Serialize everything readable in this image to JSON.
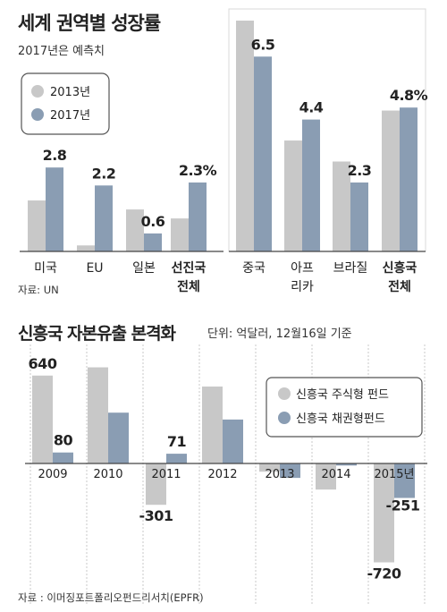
{
  "chart_data": [
    {
      "type": "bar",
      "title": "세계 권역별 성장률",
      "subtitle": "2017년은 예측치",
      "source": "자료: UN",
      "categories": [
        "미국",
        "EU",
        "일본",
        "선진국 전체",
        "중국",
        "아프리카",
        "브라질",
        "신흥국 전체"
      ],
      "category_lines": [
        [
          "미국"
        ],
        [
          "EU"
        ],
        [
          "일본"
        ],
        [
          "선진국",
          "전체"
        ],
        [
          "중국"
        ],
        [
          "아프",
          "리카"
        ],
        [
          "브라질"
        ],
        [
          "신흥국",
          "전체"
        ]
      ],
      "bold_categories": [
        3,
        7
      ],
      "series": [
        {
          "name": "2013년",
          "values": [
            1.7,
            0.2,
            1.4,
            1.1,
            7.7,
            3.7,
            3.0,
            4.7
          ]
        },
        {
          "name": "2017년",
          "values": [
            2.8,
            2.2,
            0.6,
            2.3,
            6.5,
            4.4,
            2.3,
            4.8
          ]
        }
      ],
      "value_labels": [
        "2.8",
        "2.2",
        "0.6",
        "2.3%",
        "6.5",
        "4.4",
        "2.3",
        "4.8%"
      ],
      "ylim": [
        0,
        8
      ],
      "legend": "top-left",
      "colors": {
        "2013년": "#c8c8c8",
        "2017년": "#8a9db3"
      }
    },
    {
      "type": "bar",
      "title": "신흥국 자본유출 본격화",
      "unit_note": "단위: 억달러, 12월16일 기준",
      "source": "자료 : 이머징포트폴리오펀드리서치(EPFR)",
      "categories": [
        "2009",
        "2010",
        "2011",
        "2012",
        "2013",
        "2014",
        "2015년"
      ],
      "series": [
        {
          "name": "신흥국 주식형 펀드",
          "values": [
            640,
            700,
            -301,
            560,
            -60,
            -190,
            -720
          ]
        },
        {
          "name": "신흥국 채권형펀드",
          "values": [
            80,
            370,
            71,
            320,
            -105,
            -15,
            -251
          ]
        }
      ],
      "value_labels": [
        {
          "category": 0,
          "series": 0,
          "text": "640"
        },
        {
          "category": 0,
          "series": 1,
          "text": "80"
        },
        {
          "category": 2,
          "series": 0,
          "text": "-301"
        },
        {
          "category": 2,
          "series": 1,
          "text": "71"
        },
        {
          "category": 6,
          "series": 0,
          "text": "-720"
        },
        {
          "category": 6,
          "series": 1,
          "text": "-251"
        }
      ],
      "ylim": [
        -760,
        760
      ],
      "legend": "top-right",
      "colors": {
        "신흥국 주식형 펀드": "#c8c8c8",
        "신흥국 채권형펀드": "#8a9db3"
      }
    }
  ]
}
